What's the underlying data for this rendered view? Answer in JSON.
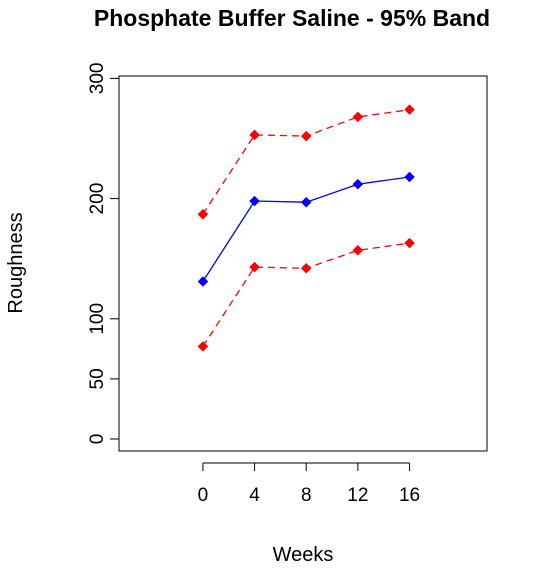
{
  "chart_data": {
    "type": "line",
    "title": "Phosphate Buffer Saline - 95% Band",
    "xlabel": "Weeks",
    "ylabel": "Roughness",
    "x": [
      0,
      4,
      8,
      12,
      16
    ],
    "x_ticks": [
      "0",
      "4",
      "8",
      "12",
      "16"
    ],
    "y_ticks": [
      "0",
      "50",
      "100",
      "200",
      "300"
    ],
    "y_tick_values": [
      0,
      50,
      100,
      200,
      300
    ],
    "xlim": [
      -6.5,
      22
    ],
    "ylim": [
      -10,
      302
    ],
    "grid": false,
    "legend": false,
    "series": [
      {
        "role": "upper",
        "color": "#ff0000",
        "style": "dashed",
        "values": [
          187,
          253,
          252,
          268,
          274
        ]
      },
      {
        "role": "mean",
        "color": "#0000ff",
        "style": "solid",
        "values": [
          131,
          198,
          197,
          212,
          218
        ]
      },
      {
        "role": "lower",
        "color": "#ff0000",
        "style": "dashed",
        "values": [
          77,
          143,
          142,
          157,
          163
        ]
      }
    ]
  }
}
